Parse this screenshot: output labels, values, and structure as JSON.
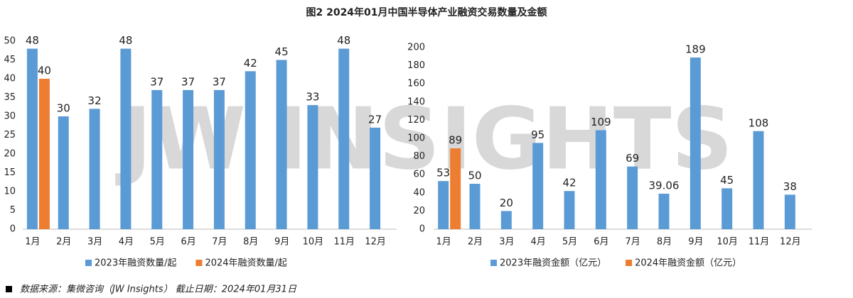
{
  "title": "图2  2024年01月中国半导体产业融资交易数量及金额",
  "watermark": "JW INSIGHTS",
  "source": "数据来源：集微咨询（JW Insights）   截止日期：2024年01月31日",
  "chart_data": [
    {
      "type": "bar",
      "categories": [
        "1月",
        "2月",
        "3月",
        "4月",
        "5月",
        "6月",
        "7月",
        "8月",
        "9月",
        "10月",
        "11月",
        "12月"
      ],
      "series": [
        {
          "name": "2023年融资数量/起",
          "color": "#5b9bd5",
          "values": [
            48,
            30,
            32,
            48,
            37,
            37,
            37,
            42,
            45,
            33,
            48,
            27
          ]
        },
        {
          "name": "2024年融资数量/起",
          "color": "#ed7d31",
          "values": [
            40,
            null,
            null,
            null,
            null,
            null,
            null,
            null,
            null,
            null,
            null,
            null
          ]
        }
      ],
      "ylim": [
        0,
        50
      ],
      "yticks": [
        0,
        5,
        10,
        15,
        20,
        25,
        30,
        35,
        40,
        45,
        50
      ],
      "grid": false
    },
    {
      "type": "bar",
      "categories": [
        "1月",
        "2月",
        "3月",
        "4月",
        "5月",
        "6月",
        "7月",
        "8月",
        "9月",
        "10月",
        "11月",
        "12月"
      ],
      "series": [
        {
          "name": "2023年融资金额（亿元）",
          "color": "#5b9bd5",
          "values": [
            53,
            50,
            20,
            95,
            42,
            109,
            69,
            39.06,
            189,
            45,
            108,
            38
          ]
        },
        {
          "name": "2024年融资金额（亿元）",
          "color": "#ed7d31",
          "values": [
            89,
            null,
            null,
            null,
            null,
            null,
            null,
            null,
            null,
            null,
            null,
            null
          ]
        }
      ],
      "ylim": [
        0,
        200
      ],
      "yticks": [
        0,
        20,
        40,
        60,
        80,
        100,
        120,
        140,
        160,
        180,
        200
      ],
      "grid": false
    }
  ]
}
